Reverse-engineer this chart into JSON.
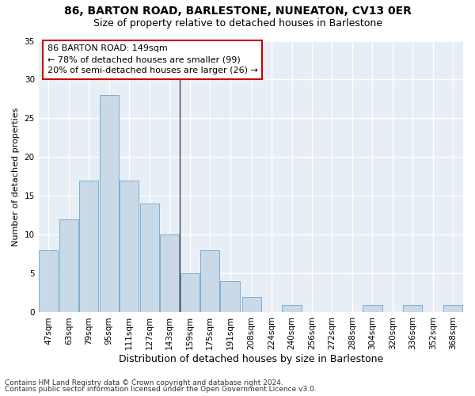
{
  "title1": "86, BARTON ROAD, BARLESTONE, NUNEATON, CV13 0ER",
  "title2": "Size of property relative to detached houses in Barlestone",
  "xlabel": "Distribution of detached houses by size in Barlestone",
  "ylabel": "Number of detached properties",
  "bar_color": "#c9d9e8",
  "bar_edge_color": "#7bafd4",
  "background_color": "#e8eef5",
  "bin_labels": [
    "47sqm",
    "63sqm",
    "79sqm",
    "95sqm",
    "111sqm",
    "127sqm",
    "143sqm",
    "159sqm",
    "175sqm",
    "191sqm",
    "208sqm",
    "224sqm",
    "240sqm",
    "256sqm",
    "272sqm",
    "288sqm",
    "304sqm",
    "320sqm",
    "336sqm",
    "352sqm",
    "368sqm"
  ],
  "bar_values": [
    8,
    12,
    17,
    28,
    17,
    14,
    10,
    5,
    8,
    4,
    2,
    0,
    1,
    0,
    0,
    0,
    1,
    0,
    1,
    0,
    1
  ],
  "ylim": [
    0,
    35
  ],
  "yticks": [
    0,
    5,
    10,
    15,
    20,
    25,
    30,
    35
  ],
  "bin_edges": [
    47,
    63,
    79,
    95,
    111,
    127,
    143,
    159,
    175,
    191,
    208,
    224,
    240,
    256,
    272,
    288,
    304,
    320,
    336,
    352,
    368,
    384
  ],
  "annotation_box_text": "86 BARTON ROAD: 149sqm\n← 78% of detached houses are smaller (99)\n20% of semi-detached houses are larger (26) →",
  "footnote1": "Contains HM Land Registry data © Crown copyright and database right 2024.",
  "footnote2": "Contains public sector information licensed under the Open Government Licence v3.0.",
  "grid_color": "#ffffff",
  "annotation_box_color": "#ffffff",
  "annotation_box_edge_color": "#cc0000",
  "vline_color": "#444444",
  "title1_fontsize": 10,
  "title2_fontsize": 9,
  "xlabel_fontsize": 9,
  "ylabel_fontsize": 8,
  "tick_fontsize": 7.5,
  "annotation_fontsize": 8,
  "footnote_fontsize": 6.5
}
